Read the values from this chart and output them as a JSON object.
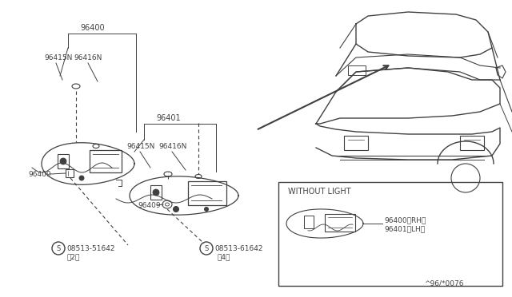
{
  "bg_color": "#ffffff",
  "line_color": "#404040",
  "text_color": "#404040",
  "fig_width": 6.4,
  "fig_height": 3.72,
  "dpi": 100,
  "labels": {
    "part1": "96400",
    "part2": "96401",
    "part3a": "96415N",
    "part3b": "96416N",
    "part4": "96409",
    "screw1_label": "S",
    "screw1": "08513-51642",
    "screw1_qty": "（2）",
    "screw2": "08513-61642",
    "screw2_qty": "（4）",
    "without_light": "WITHOUT LIGHT",
    "rh_lh1": "96400（RH）",
    "rh_lh2": "96401（LH）",
    "part_num": "^96/*0076"
  }
}
